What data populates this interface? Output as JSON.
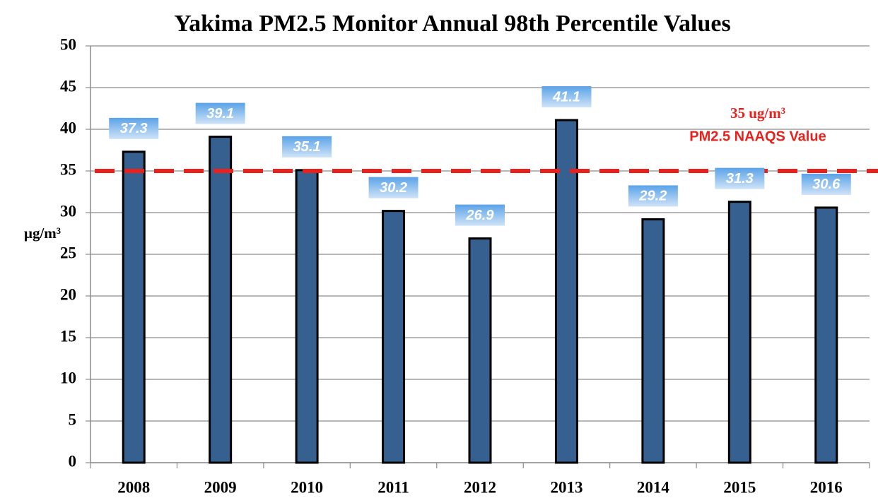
{
  "chart_data": {
    "type": "bar",
    "title": "Yakima PM2.5 Monitor Annual 98th Percentile Values",
    "y_label": "µg/m³",
    "categories": [
      "2008",
      "2009",
      "2010",
      "2011",
      "2012",
      "2013",
      "2014",
      "2015",
      "2016"
    ],
    "values": [
      37.3,
      39.1,
      35.1,
      30.2,
      26.9,
      41.1,
      29.2,
      31.3,
      30.6
    ],
    "color": "#36608f",
    "ylim": [
      0,
      50
    ],
    "yticks": [
      0,
      5,
      10,
      15,
      20,
      25,
      30,
      35,
      40,
      45,
      50
    ],
    "grid": true,
    "reference_line": {
      "value": 35,
      "color": "#e8211d",
      "annotations": [
        "35 ug/m³",
        "PM2.5 NAAQS Value"
      ]
    }
  }
}
